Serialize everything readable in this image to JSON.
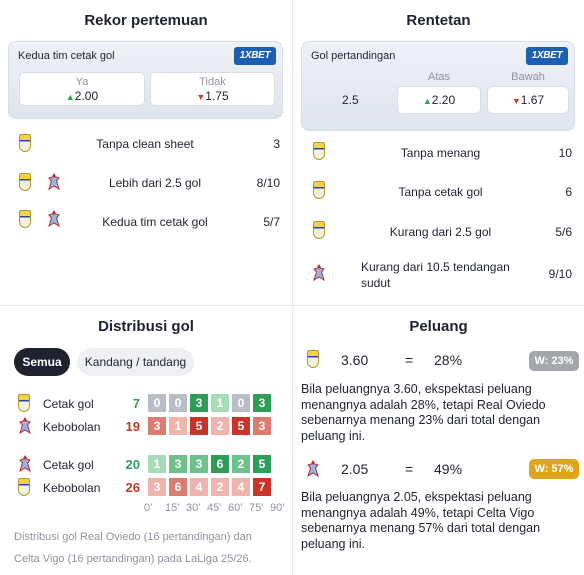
{
  "head_to_head": {
    "title": "Rekor pertemuan",
    "odds_label": "Kedua tim cetak gol",
    "brand": "1XBET",
    "options": [
      {
        "label": "Ya",
        "value": "2.00",
        "trend": "up"
      },
      {
        "label": "Tidak",
        "value": "1.75",
        "trend": "down"
      }
    ],
    "rows": [
      {
        "label": "Tanpa clean sheet",
        "value": "3",
        "teams": [
          "oviedo"
        ]
      },
      {
        "label": "Lebih dari 2.5 gol",
        "value": "8/10",
        "teams": [
          "oviedo",
          "celta"
        ]
      },
      {
        "label": "Kedua tim cetak gol",
        "value": "5/7",
        "teams": [
          "oviedo",
          "celta"
        ]
      }
    ]
  },
  "streaks": {
    "title": "Rentetan",
    "odds_label": "Gol pertandingan",
    "brand": "1XBET",
    "line": "2.5",
    "options": [
      {
        "label": "Atas",
        "value": "2.20",
        "trend": "up"
      },
      {
        "label": "Bawah",
        "value": "1.67",
        "trend": "down"
      }
    ],
    "rows": [
      {
        "label": "Tanpa menang",
        "value": "10",
        "team": "oviedo"
      },
      {
        "label": "Tanpa cetak gol",
        "value": "6",
        "team": "oviedo"
      },
      {
        "label": "Kurang dari 2.5 gol",
        "value": "5/6",
        "team": "oviedo"
      },
      {
        "label_line1": "Kurang dari 10.5 tendangan",
        "label_line2": "sudut",
        "value": "9/10",
        "team": "celta"
      }
    ]
  },
  "distribution": {
    "title": "Distribusi gol",
    "tabs": [
      {
        "label": "Semua",
        "active": true
      },
      {
        "label": "Kandang / tandang",
        "active": false
      }
    ],
    "ticks": [
      "0'",
      "15'",
      "30'",
      "45'",
      "60'",
      "75'",
      "90'"
    ],
    "teams": [
      {
        "team": "oviedo",
        "scored_label": "Cetak gol",
        "scored_total": "7",
        "scored": [
          "0",
          "0",
          "3",
          "1",
          "0",
          "3"
        ],
        "scored_colors": [
          "#b9bec6",
          "#b9bec6",
          "#2e9d57",
          "#a6dcb6",
          "#b9bec6",
          "#2e9d57"
        ],
        "conceded_label": "Kebobolan",
        "conceded_total": "19",
        "conceded": [
          "3",
          "1",
          "5",
          "2",
          "5",
          "3"
        ],
        "conceded_colors": [
          "#dc7b72",
          "#efb4ae",
          "#c8332a",
          "#efb4ae",
          "#c8332a",
          "#dc7b72"
        ]
      },
      {
        "team": "celta",
        "scored_label": "Cetak gol",
        "scored_total": "20",
        "scored": [
          "1",
          "3",
          "3",
          "6",
          "2",
          "5"
        ],
        "scored_colors": [
          "#a6dcb6",
          "#6cc28a",
          "#6cc28a",
          "#2e9d57",
          "#6cc28a",
          "#2e9d57"
        ],
        "conceded_label": "Kebobolan",
        "conceded_total": "26",
        "conceded": [
          "3",
          "6",
          "4",
          "2",
          "4",
          "7"
        ],
        "conceded_colors": [
          "#efb4ae",
          "#dc7b72",
          "#efb4ae",
          "#efb4ae",
          "#efb4ae",
          "#c8332a"
        ]
      }
    ],
    "note_line1": "Distribusi gol Real Oviedo (16 pertandingan) dan",
    "note_line2": "Celta Vigo (16 pertandingan) pada LaLiga 25/26."
  },
  "chances": {
    "title": "Peluang",
    "items": [
      {
        "team": "oviedo",
        "odds": "3.60",
        "eq": "=",
        "pct": "28%",
        "badge": "W: 23%",
        "badge_color": "#a3a6ac",
        "text_lines": [
          "Bila peluangnya 3.60, ekspektasi peluang",
          "menangnya adalah 28%, tetapi Real Oviedo",
          "sebenarnya menang 23% dari total dengan",
          "peluang ini."
        ]
      },
      {
        "team": "celta",
        "odds": "2.05",
        "eq": "=",
        "pct": "49%",
        "badge": "W: 57%",
        "badge_color": "#e0a419",
        "text_lines": [
          "Bila peluangnya 2.05, ekspektasi peluang",
          "menangnya adalah 49%, tetapi Celta Vigo",
          "sebenarnya menang 57% dari total dengan",
          "peluang ini."
        ]
      }
    ]
  },
  "colors": {
    "up": "#2aa54a",
    "down": "#d23a3a",
    "brand": "#1a5fb4"
  }
}
